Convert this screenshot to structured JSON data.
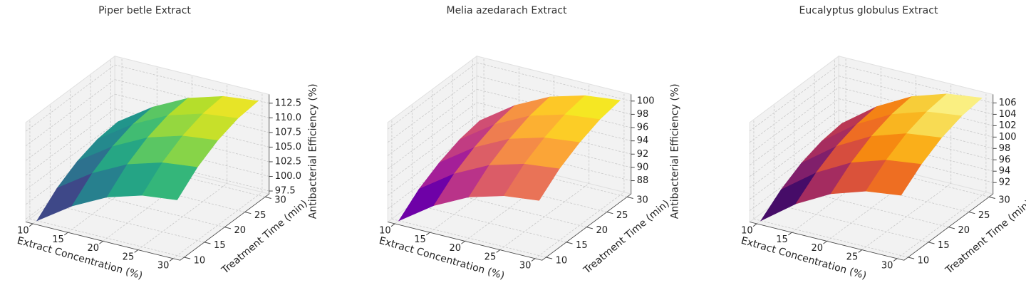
{
  "chart_data": [
    {
      "type": "surface",
      "title": "Piper betle Extract",
      "colormap": "viridis",
      "xlabel": "Extract Concentration (%)",
      "ylabel": "Treatment Time (min)",
      "zlabel": "Antibacterial Efficiency (%)",
      "x": [
        10,
        15,
        20,
        25,
        30
      ],
      "y": [
        10,
        15,
        20,
        25,
        30
      ],
      "z": [
        [
          97,
          101,
          104,
          105.8,
          106.5
        ],
        [
          100,
          104,
          107,
          108.8,
          109.5
        ],
        [
          102,
          106,
          109,
          110.8,
          111.5
        ],
        [
          103.2,
          107.2,
          110.2,
          112,
          112.7
        ],
        [
          103.6,
          107.6,
          110.6,
          112.4,
          113.1
        ]
      ],
      "xlim": [
        9,
        31
      ],
      "ylim": [
        9,
        31
      ],
      "zlim": [
        97,
        114
      ],
      "xticks": [
        10,
        15,
        20,
        25,
        30
      ],
      "yticks": [
        10,
        15,
        20,
        25,
        30
      ],
      "zticks": [
        97.5,
        {
          "value": 100,
          "label": "100.0"
        },
        102.5,
        {
          "value": 105,
          "label": "105.0"
        },
        107.5,
        {
          "value": 110,
          "label": "110.0"
        },
        112.5
      ]
    },
    {
      "type": "surface",
      "title": "Melia azedarach Extract",
      "colormap": "plasma",
      "xlabel": "Extract Concentration (%)",
      "ylabel": "Treatment Time (min)",
      "zlabel": "Antibacterial Efficiency (%)",
      "x": [
        10,
        15,
        20,
        25,
        30
      ],
      "y": [
        10,
        15,
        20,
        25,
        30
      ],
      "z": [
        [
          86,
          89.6,
          92.2,
          93.7,
          94.3
        ],
        [
          88.5,
          92.1,
          94.7,
          96.2,
          96.8
        ],
        [
          90.2,
          93.8,
          96.4,
          97.9,
          98.5
        ],
        [
          91.4,
          95,
          97.6,
          99.1,
          99.7
        ],
        [
          92,
          95.6,
          98.2,
          99.7,
          100.3
        ]
      ],
      "xlim": [
        9,
        31
      ],
      "ylim": [
        9,
        31
      ],
      "zlim": [
        86,
        101
      ],
      "xticks": [
        10,
        15,
        20,
        25,
        30
      ],
      "yticks": [
        10,
        15,
        20,
        25,
        30
      ],
      "zticks": [
        88,
        90,
        92,
        94,
        96,
        98,
        100
      ]
    },
    {
      "type": "surface",
      "title": "Eucalyptus globulus Extract",
      "colormap": "inferno",
      "xlabel": "Extract Concentration (%)",
      "ylabel": "Treatment Time (min)",
      "zlabel": "Antibacterial Efficiency (%)",
      "x": [
        10,
        15,
        20,
        25,
        30
      ],
      "y": [
        10,
        15,
        20,
        25,
        30
      ],
      "z": [
        [
          90,
          94.5,
          97.8,
          99.8,
          100.6
        ],
        [
          92.8,
          97.3,
          100.6,
          102.6,
          103.4
        ],
        [
          94.8,
          99.3,
          102.6,
          104.6,
          105.4
        ],
        [
          96,
          100.5,
          103.8,
          105.8,
          106.6
        ],
        [
          96.5,
          101,
          104.3,
          106.3,
          107.1
        ]
      ],
      "xlim": [
        9,
        31
      ],
      "ylim": [
        9,
        31
      ],
      "zlim": [
        90,
        107.5
      ],
      "xticks": [
        10,
        15,
        20,
        25,
        30
      ],
      "yticks": [
        10,
        15,
        20,
        25,
        30
      ],
      "zticks": [
        92,
        94,
        96,
        98,
        100,
        102,
        104,
        106
      ]
    }
  ]
}
